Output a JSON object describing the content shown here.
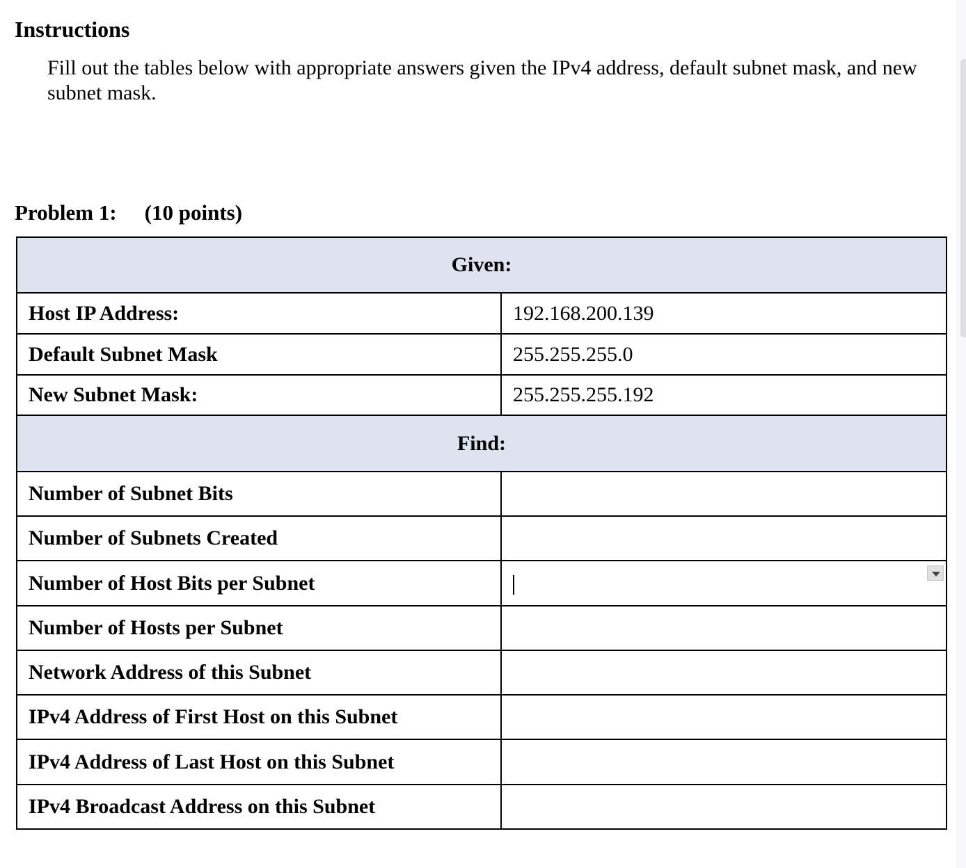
{
  "instructions": {
    "title": "Instructions",
    "text": "Fill out the tables below with appropriate answers given the IPv4 address, default subnet mask, and new subnet mask."
  },
  "problem": {
    "label": "Problem 1:",
    "points": "(10 points)"
  },
  "given": {
    "header": "Given:",
    "rows": [
      {
        "label": "Host IP Address:",
        "value": "192.168.200.139"
      },
      {
        "label": "Default Subnet Mask",
        "value": "255.255.255.0"
      },
      {
        "label": "New Subnet Mask:",
        "value": "255.255.255.192"
      }
    ]
  },
  "find": {
    "header": "Find:",
    "rows": [
      {
        "label": "Number of Subnet Bits",
        "value": ""
      },
      {
        "label": "Number of Subnets Created",
        "value": ""
      },
      {
        "label": "Number of Host Bits per Subnet",
        "value": ""
      },
      {
        "label": "Number of Hosts per Subnet",
        "value": ""
      },
      {
        "label": "Network Address of this Subnet",
        "value": ""
      },
      {
        "label": "IPv4 Address of First Host on this Subnet",
        "value": ""
      },
      {
        "label": "IPv4 Address of Last Host on this Subnet",
        "value": ""
      },
      {
        "label": "IPv4 Broadcast Address on this Subnet",
        "value": ""
      }
    ]
  },
  "colors": {
    "header_bg": "#dde4ef"
  },
  "icons": {
    "dropdown": "triangle-down-icon"
  }
}
